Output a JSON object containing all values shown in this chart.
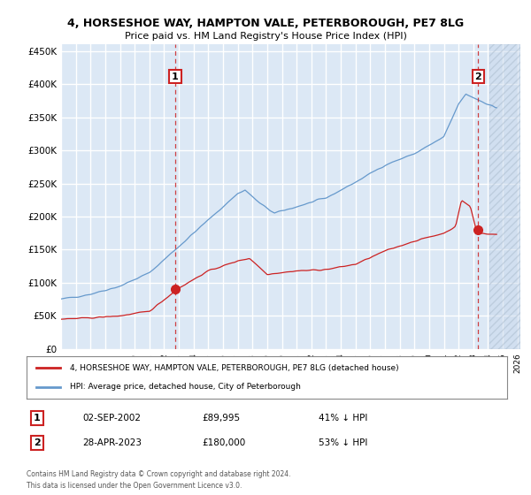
{
  "title_line1": "4, HORSESHOE WAY, HAMPTON VALE, PETERBOROUGH, PE7 8LG",
  "title_line2": "Price paid vs. HM Land Registry's House Price Index (HPI)",
  "plot_bg_color": "#dce8f5",
  "grid_color": "#ffffff",
  "hpi_color": "#6699cc",
  "price_color": "#cc2222",
  "transaction1": {
    "date": "02-SEP-2002",
    "price": "89,995",
    "pct": "41% ↓ HPI",
    "label": "1"
  },
  "transaction2": {
    "date": "28-APR-2023",
    "price": "180,000",
    "pct": "53% ↓ HPI",
    "label": "2"
  },
  "ylim_min": 0,
  "ylim_max": 460000,
  "yticks": [
    0,
    50000,
    100000,
    150000,
    200000,
    250000,
    300000,
    350000,
    400000,
    450000
  ],
  "ytick_labels": [
    "£0",
    "£50K",
    "£100K",
    "£150K",
    "£200K",
    "£250K",
    "£300K",
    "£350K",
    "£400K",
    "£450K"
  ],
  "legend_line1": "4, HORSESHOE WAY, HAMPTON VALE, PETERBOROUGH, PE7 8LG (detached house)",
  "legend_line2": "HPI: Average price, detached house, City of Peterborough",
  "footer_line1": "Contains HM Land Registry data © Crown copyright and database right 2024.",
  "footer_line2": "This data is licensed under the Open Government Licence v3.0.",
  "tx1_x": 2002.75,
  "tx1_y": 89995,
  "tx2_x": 2023.33,
  "tx2_y": 180000,
  "hatch_start_x": 2024.08,
  "xmin": 1995,
  "xmax": 2026.2
}
